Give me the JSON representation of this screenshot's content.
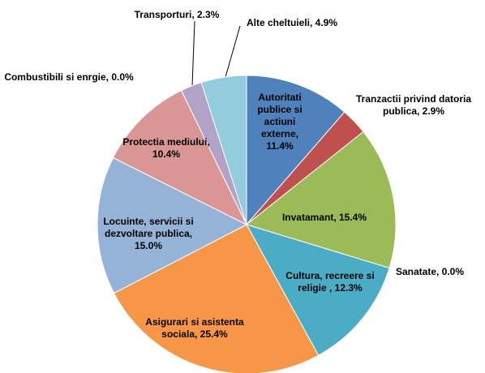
{
  "chart_data": {
    "type": "pie",
    "values": [
      11.4,
      2.9,
      15.4,
      0.0,
      12.3,
      25.4,
      15.0,
      10.4,
      0.0,
      2.3,
      4.9
    ],
    "value_labels": [
      "Autoritati publice si actiuni externe, 11.4%",
      "Tranzactii privind datoria publica, 2.9%",
      "Invatamant, 15.4%",
      "Sanatate, 0.0%",
      "Cultura, recreere si religie , 12.3%",
      "Asigurari si asistenta sociala, 25.4%",
      "Locuinte, servicii si dezvoltare publica, 15.0%",
      "Protectia mediului, 10.4%",
      "Combustibili si enrgie, 0.0%",
      "Transporturi, 2.3%",
      "Alte cheltuieli, 4.9%"
    ],
    "colors": [
      "#4f81bd",
      "#c0504d",
      "#9bbb59",
      "#8064a2",
      "#4bacc6",
      "#f79646",
      "#95b3d7",
      "#d99694",
      "#c3d69b",
      "#b3a2c7",
      "#93cddd"
    ]
  }
}
